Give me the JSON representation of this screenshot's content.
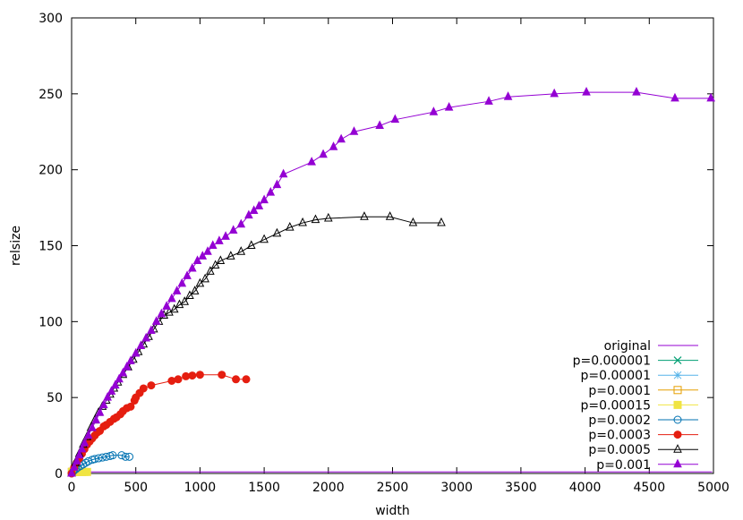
{
  "chart_data": {
    "type": "line",
    "xlabel": "width",
    "ylabel": "relsize",
    "xlim": [
      0,
      5000
    ],
    "ylim": [
      0,
      300
    ],
    "xticks": [
      0,
      500,
      1000,
      1500,
      2000,
      2500,
      3000,
      3500,
      4000,
      4500,
      5000
    ],
    "yticks": [
      0,
      50,
      100,
      150,
      200,
      250,
      300
    ],
    "grid": false,
    "legend_position": "bottom-right",
    "series": [
      {
        "name": "original",
        "color": "#9400d3",
        "marker": "none",
        "x": [
          0,
          4990
        ],
        "y": [
          1,
          1
        ]
      },
      {
        "name": "p=0.000001",
        "color": "#009e73",
        "marker": "cross",
        "x": [
          2,
          5,
          8,
          12
        ],
        "y": [
          1,
          1,
          1,
          1
        ]
      },
      {
        "name": "p=0.00001",
        "color": "#56b4e9",
        "marker": "asterisk",
        "x": [
          2,
          6,
          10,
          15,
          20
        ],
        "y": [
          1,
          1,
          1,
          1,
          1
        ]
      },
      {
        "name": "p=0.0001",
        "color": "#e69f00",
        "marker": "open-square",
        "x": [
          2,
          6,
          12,
          20,
          30
        ],
        "y": [
          1,
          1,
          1,
          1,
          1
        ]
      },
      {
        "name": "p=0.00015",
        "color": "#f0e442",
        "marker": "filled-square",
        "x": [
          3,
          10,
          20,
          30,
          45,
          60,
          80,
          100,
          120
        ],
        "y": [
          1,
          1,
          1,
          1,
          1,
          1,
          1,
          1,
          1
        ]
      },
      {
        "name": "p=0.0002",
        "color": "#0072b2",
        "marker": "open-circle",
        "x": [
          0,
          10,
          20,
          35,
          50,
          70,
          90,
          110,
          130,
          160,
          180,
          210,
          240,
          270,
          300,
          320,
          390,
          420,
          450
        ],
        "y": [
          0,
          1,
          2,
          3,
          4,
          5,
          6,
          7,
          8,
          9,
          9.5,
          10,
          10.5,
          11,
          11.5,
          12,
          12,
          11,
          11
        ]
      },
      {
        "name": "p=0.0003",
        "color": "#e51e10",
        "marker": "filled-circle",
        "x": [
          0,
          20,
          40,
          60,
          80,
          100,
          120,
          140,
          160,
          180,
          200,
          220,
          250,
          270,
          300,
          330,
          350,
          380,
          400,
          430,
          460,
          490,
          500,
          530,
          560,
          620,
          780,
          830,
          890,
          940,
          1000,
          1170,
          1280,
          1360
        ],
        "y": [
          0,
          4,
          7,
          10,
          13,
          16,
          19,
          21,
          23,
          25,
          27,
          28,
          31,
          32,
          34,
          36,
          37,
          39,
          41,
          43,
          44,
          48,
          50,
          53,
          56,
          58,
          61,
          62,
          64,
          64.5,
          65,
          65,
          62,
          62
        ]
      },
      {
        "name": "p=0.0005",
        "color": "#000000",
        "marker": "open-triangle",
        "x": [
          0,
          30,
          60,
          90,
          120,
          150,
          180,
          210,
          240,
          270,
          300,
          330,
          360,
          400,
          440,
          480,
          520,
          560,
          600,
          640,
          680,
          720,
          760,
          800,
          840,
          880,
          920,
          960,
          1000,
          1040,
          1080,
          1120,
          1160,
          1240,
          1320,
          1400,
          1500,
          1600,
          1700,
          1800,
          1900,
          2000,
          2280,
          2480,
          2660,
          2880
        ],
        "y": [
          0,
          7,
          13,
          19,
          24,
          30,
          35,
          40,
          44,
          48,
          52,
          56,
          60,
          65,
          70,
          75,
          80,
          85,
          90,
          95,
          100,
          104,
          106,
          108,
          111,
          113,
          117,
          120,
          125,
          128,
          133,
          137,
          140,
          143,
          146,
          150,
          154,
          158,
          162,
          165,
          167,
          168,
          169,
          169,
          165,
          165
        ]
      },
      {
        "name": "p=0.001",
        "color": "#9400d3",
        "marker": "filled-triangle",
        "x": [
          0,
          20,
          40,
          60,
          80,
          100,
          130,
          160,
          190,
          220,
          250,
          280,
          310,
          340,
          370,
          400,
          430,
          460,
          500,
          540,
          580,
          620,
          660,
          700,
          740,
          780,
          820,
          860,
          900,
          940,
          980,
          1020,
          1060,
          1100,
          1150,
          1200,
          1260,
          1320,
          1380,
          1420,
          1460,
          1500,
          1550,
          1600,
          1650,
          1870,
          1960,
          2040,
          2100,
          2200,
          2400,
          2520,
          2820,
          2940,
          3250,
          3400,
          3760,
          4010,
          4400,
          4700,
          4980
        ],
        "y": [
          0,
          4,
          8,
          12,
          16,
          20,
          25,
          30,
          35,
          40,
          45,
          50,
          54,
          58,
          62,
          66,
          70,
          74,
          79,
          84,
          89,
          94,
          100,
          105,
          110,
          115,
          120,
          125,
          130,
          135,
          140,
          143,
          146,
          150,
          153,
          156,
          160,
          164,
          170,
          173,
          176,
          180,
          185,
          190,
          197,
          205,
          210,
          215,
          220,
          225,
          229,
          233,
          238,
          241,
          245,
          248,
          250,
          251,
          251,
          247,
          247
        ]
      }
    ]
  }
}
